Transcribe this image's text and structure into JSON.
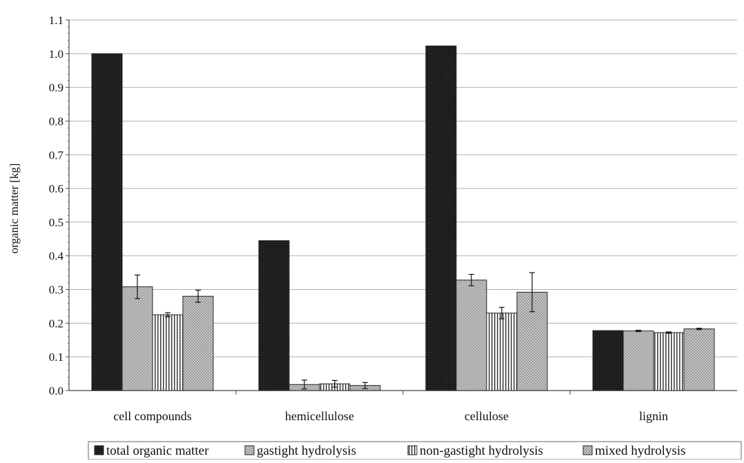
{
  "chart_data": {
    "type": "bar",
    "title": "",
    "xlabel": "",
    "ylabel": "organic matter [kg]",
    "ylim": [
      0.0,
      1.1
    ],
    "y_ticks": [
      "0.0",
      "0.1",
      "0.2",
      "0.3",
      "0.4",
      "0.5",
      "0.6",
      "0.7",
      "0.8",
      "0.9",
      "1.0",
      "1.1"
    ],
    "grid": true,
    "legend_position": "bottom",
    "categories": [
      "cell compounds",
      "hemicellulose",
      "cellulose",
      "lignin"
    ],
    "series": [
      {
        "name": "total organic matter",
        "fill": "dark",
        "values": [
          1.0,
          0.445,
          1.023,
          0.178
        ],
        "errors": [
          null,
          null,
          null,
          null
        ]
      },
      {
        "name": "gastight hydrolysis",
        "fill": "diagonal",
        "values": [
          0.308,
          0.018,
          0.328,
          0.177
        ],
        "errors": [
          0.035,
          0.013,
          0.017,
          0.002
        ]
      },
      {
        "name": "non-gastight hydrolysis",
        "fill": "vertical",
        "values": [
          0.225,
          0.02,
          0.23,
          0.172
        ],
        "errors": [
          0.006,
          0.01,
          0.017,
          0.002
        ]
      },
      {
        "name": "mixed hydrolysis",
        "fill": "crosshatch",
        "values": [
          0.28,
          0.015,
          0.292,
          0.183
        ],
        "errors": [
          0.018,
          0.009,
          0.058,
          0.002
        ]
      }
    ]
  }
}
